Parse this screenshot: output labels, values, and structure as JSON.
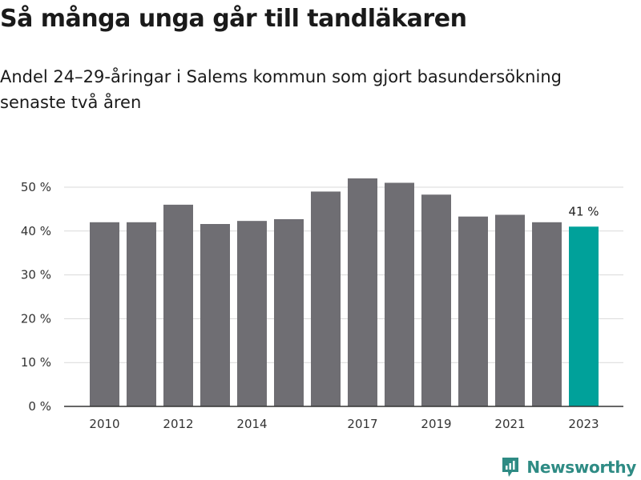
{
  "header": {
    "title": "Så många unga går till tandläkaren",
    "subtitle": "Andel 24–29-åringar i Salems kommun som gjort basundersökning senaste två åren"
  },
  "brand": {
    "name": "Newsworthy",
    "icon": "newsworthy-logo-icon",
    "color": "#2e8b84"
  },
  "chart_data": {
    "type": "bar",
    "categories": [
      "2010",
      "2011",
      "2012",
      "2013",
      "2014",
      "2015",
      "2016",
      "2017",
      "2018",
      "2019",
      "2020",
      "2021",
      "2022",
      "2023"
    ],
    "values": [
      42,
      42,
      46,
      41.6,
      42.3,
      42.7,
      49,
      52,
      51,
      48.3,
      43.3,
      43.7,
      42,
      41
    ],
    "x_tick_labels": [
      "2010",
      "",
      "2012",
      "",
      "2014",
      "",
      "",
      "2017",
      "",
      "2019",
      "",
      "2021",
      "",
      "2023"
    ],
    "y_ticks": [
      0,
      10,
      20,
      30,
      40,
      50
    ],
    "y_tick_labels": [
      "0 %",
      "10 %",
      "20 %",
      "30 %",
      "40 %",
      "50 %"
    ],
    "ylim": [
      0,
      55
    ],
    "grid": true,
    "bar_color": "#6f6e73",
    "highlight_color": "#00a19a",
    "highlight_index": 13,
    "data_labels": [
      {
        "index": 13,
        "text": "41 %"
      }
    ]
  }
}
